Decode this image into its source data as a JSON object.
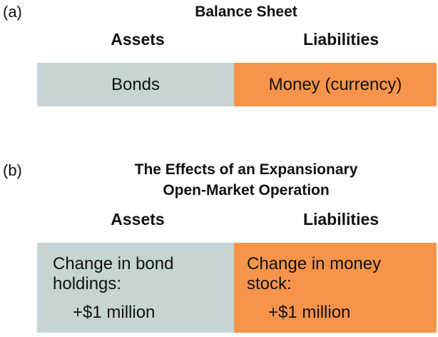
{
  "panel_a": {
    "label": "(a)",
    "title": "Balance Sheet",
    "assets_header": "Assets",
    "liabilities_header": "Liabilities",
    "assets_entry": "Bonds",
    "liabilities_entry": "Money (currency)"
  },
  "panel_b": {
    "label": "(b)",
    "title": "The Effects of an Expansionary\nOpen-Market Operation",
    "assets_header": "Assets",
    "liabilities_header": "Liabilities",
    "assets_entry_text": "Change in bond\nholdings:",
    "assets_entry_value": "+$1 million",
    "liabilities_entry_text": "Change in money\nstock:",
    "liabilities_entry_value": "+$1 million"
  },
  "colors": {
    "assets_fill": "#c6d4d6",
    "liabilities_fill": "#f7944a"
  }
}
